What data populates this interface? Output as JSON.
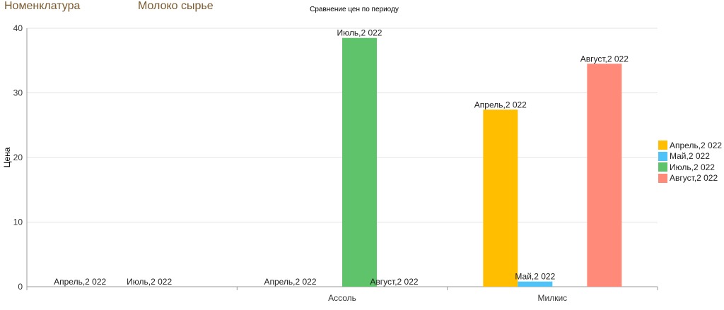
{
  "header": {
    "nomenclature_label": "Номенклатура",
    "product": "Молоко сырье"
  },
  "chart_data": {
    "type": "bar",
    "title": "Сравнение цен по периоду",
    "xlabel": "",
    "ylabel": "Цена",
    "ylim": [
      0,
      40
    ],
    "yticks": [
      0,
      10,
      20,
      30,
      40
    ],
    "grid": true,
    "legend_position": "right",
    "categories": [
      "",
      "Ассоль",
      "Милкис"
    ],
    "series": [
      {
        "name": "Апрель,2 022",
        "color": "#ffbf00",
        "values": [
          0,
          0,
          27.4
        ]
      },
      {
        "name": "Май,2 022",
        "color": "#4fc3f7",
        "values": [
          null,
          null,
          0.8
        ]
      },
      {
        "name": "Июль,2 022",
        "color": "#5ec36a",
        "values": [
          0,
          38.5,
          null
        ]
      },
      {
        "name": "Август,2 022",
        "color": "#ff8a7a",
        "values": [
          null,
          0,
          34.5
        ]
      }
    ]
  }
}
